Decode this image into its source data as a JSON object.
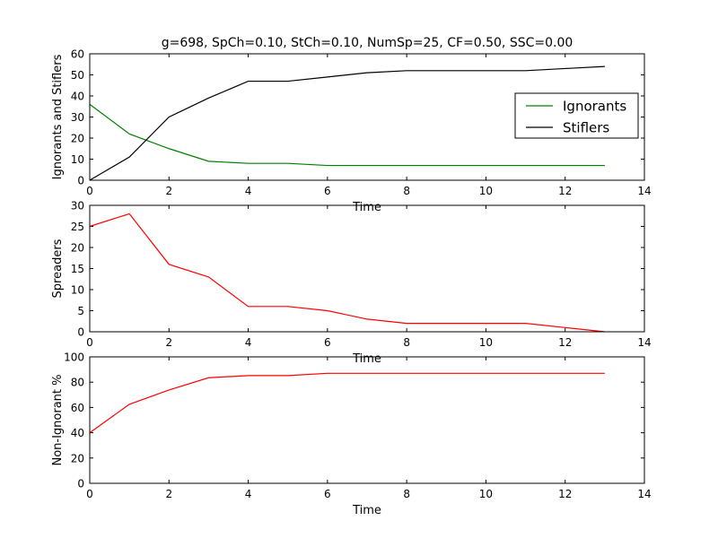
{
  "chart_data": [
    {
      "type": "line",
      "title": "g=698, SpCh=0.10, StCh=0.10, NumSp=25, CF=0.50, SSC=0.00",
      "xlabel": "Time",
      "ylabel": "Ignorants and Stiflers",
      "xlim": [
        0,
        14
      ],
      "ylim": [
        0,
        60
      ],
      "xticks": [
        0,
        2,
        4,
        6,
        8,
        10,
        12,
        14
      ],
      "yticks": [
        0,
        10,
        20,
        30,
        40,
        50,
        60
      ],
      "grid": false,
      "legend": "right",
      "x": [
        0,
        1,
        2,
        3,
        4,
        5,
        6,
        7,
        8,
        9,
        10,
        11,
        12,
        13
      ],
      "series": [
        {
          "name": "Ignorants",
          "color": "#008000",
          "values": [
            36,
            22,
            15,
            9,
            8,
            8,
            7,
            7,
            7,
            7,
            7,
            7,
            7,
            7
          ]
        },
        {
          "name": "Stiflers",
          "color": "#000000",
          "values": [
            0,
            11,
            30,
            39,
            47,
            47,
            49,
            51,
            52,
            52,
            52,
            52,
            53,
            54
          ]
        }
      ]
    },
    {
      "type": "line",
      "xlabel": "Time",
      "ylabel": "Spreaders",
      "xlim": [
        0,
        14
      ],
      "ylim": [
        0,
        30
      ],
      "xticks": [
        0,
        2,
        4,
        6,
        8,
        10,
        12,
        14
      ],
      "yticks": [
        0,
        5,
        10,
        15,
        20,
        25,
        30
      ],
      "grid": false,
      "x": [
        0,
        1,
        2,
        3,
        4,
        5,
        6,
        7,
        8,
        9,
        10,
        11,
        12,
        13
      ],
      "series": [
        {
          "color": "#ff0000",
          "values": [
            25,
            28,
            16,
            13,
            6,
            6,
            5,
            3,
            2,
            2,
            2,
            2,
            1,
            0
          ]
        }
      ]
    },
    {
      "type": "line",
      "xlabel": "Time",
      "ylabel": "Non-Ignorant %",
      "xlim": [
        0,
        14
      ],
      "ylim": [
        0,
        100
      ],
      "xticks": [
        0,
        2,
        4,
        6,
        8,
        10,
        12,
        14
      ],
      "yticks": [
        0,
        20,
        40,
        60,
        80,
        100
      ],
      "grid": false,
      "x": [
        0,
        1,
        2,
        3,
        4,
        5,
        6,
        7,
        8,
        9,
        10,
        11,
        12,
        13
      ],
      "series": [
        {
          "color": "#ff0000",
          "values": [
            40,
            62.5,
            73.8,
            83.5,
            85.2,
            85.2,
            87,
            87,
            87,
            87,
            87,
            87,
            87,
            87
          ]
        }
      ]
    }
  ]
}
